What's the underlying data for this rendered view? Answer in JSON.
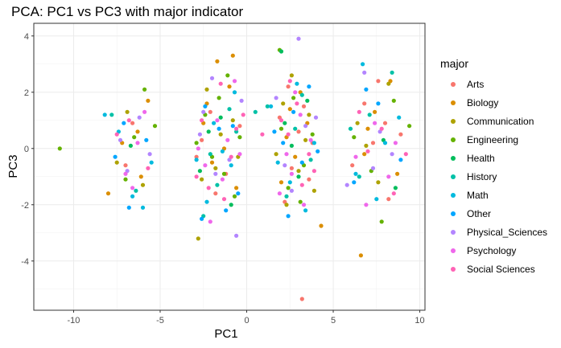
{
  "chart_data": {
    "type": "scatter",
    "title": "PCA: PC1 vs PC3 with major indicator",
    "xlabel": "PC1",
    "ylabel": "PC3",
    "xlim": [
      -12.3,
      10.3
    ],
    "ylim": [
      -5.75,
      4.45
    ],
    "xticks": [
      -10,
      -5,
      0,
      5,
      10
    ],
    "xtick_labels": [
      "-10",
      "-5",
      "0",
      "5",
      "10"
    ],
    "yticks": [
      -4,
      -2,
      0,
      2,
      4
    ],
    "ytick_labels": [
      "-4",
      "-2",
      "0",
      "2",
      "4"
    ],
    "grid": true,
    "legend": {
      "title": "major",
      "placement": "right"
    },
    "series": [
      {
        "name": "Arts",
        "color": "#F8766D",
        "points": [
          [
            -7.0,
            -0.6
          ],
          [
            -6.6,
            0.9
          ],
          [
            -2.1,
            1.3
          ],
          [
            -1.2,
            -0.9
          ],
          [
            -2.6,
            0.3
          ],
          [
            -0.4,
            0.8
          ],
          [
            -1.8,
            -1.6
          ],
          [
            -2.9,
            -0.3
          ],
          [
            1.9,
            1.1
          ],
          [
            2.6,
            -0.7
          ],
          [
            3.3,
            1.5
          ],
          [
            3.8,
            0.2
          ],
          [
            2.2,
            -1.9
          ],
          [
            3.0,
            0.6
          ],
          [
            2.4,
            2.2
          ],
          [
            3.6,
            -1.1
          ],
          [
            3.2,
            -5.35
          ],
          [
            7.3,
            0.2
          ],
          [
            8.2,
            -1.8
          ],
          [
            6.8,
            1.6
          ],
          [
            8.9,
            0.5
          ],
          [
            7.6,
            2.4
          ],
          [
            6.1,
            -0.6
          ],
          [
            8.0,
            0.9
          ]
        ]
      },
      {
        "name": "Biology",
        "color": "#DB8E00",
        "points": [
          [
            -8.0,
            -1.6
          ],
          [
            -6.3,
            0.6
          ],
          [
            -6.1,
            -1.0
          ],
          [
            -5.7,
            1.7
          ],
          [
            -7.2,
            0.2
          ],
          [
            -2.5,
            0.9
          ],
          [
            -1.0,
            2.2
          ],
          [
            -0.8,
            3.3
          ],
          [
            -1.7,
            3.1
          ],
          [
            -2.0,
            -0.5
          ],
          [
            -0.6,
            -1.4
          ],
          [
            -2.3,
            1.6
          ],
          [
            -1.3,
            0.0
          ],
          [
            2.5,
            1.4
          ],
          [
            2.8,
            -0.3
          ],
          [
            3.5,
            0.9
          ],
          [
            4.3,
            -2.75
          ],
          [
            2.0,
            -1.2
          ],
          [
            3.1,
            2.0
          ],
          [
            6.6,
            -3.8
          ],
          [
            6.8,
            -0.2
          ],
          [
            7.4,
            1.3
          ],
          [
            8.3,
            2.4
          ],
          [
            8.7,
            -0.9
          ],
          [
            7.0,
            0.7
          ],
          [
            2.3,
            0.4
          ]
        ]
      },
      {
        "name": "Communication",
        "color": "#AEA200",
        "points": [
          [
            -6.9,
            1.3
          ],
          [
            -7.5,
            -0.5
          ],
          [
            -6.0,
            -1.3
          ],
          [
            -2.8,
            -3.2
          ],
          [
            -1.8,
            -0.7
          ],
          [
            -0.8,
            1.0
          ],
          [
            -2.3,
            2.1
          ],
          [
            -1.5,
            0.5
          ],
          [
            -0.5,
            -0.3
          ],
          [
            -2.6,
            -1.1
          ],
          [
            2.1,
            1.6
          ],
          [
            3.0,
            -0.8
          ],
          [
            3.4,
            0.3
          ],
          [
            2.6,
            2.6
          ],
          [
            1.7,
            -0.2
          ],
          [
            3.9,
            -1.5
          ],
          [
            2.3,
            -2.0
          ],
          [
            3.6,
            1.2
          ],
          [
            6.4,
            0.9
          ],
          [
            7.6,
            -1.2
          ],
          [
            8.2,
            2.3
          ],
          [
            6.9,
            0.1
          ]
        ]
      },
      {
        "name": "Engineering",
        "color": "#64B200",
        "points": [
          [
            -10.8,
            0.0
          ],
          [
            -5.9,
            2.1
          ],
          [
            -6.5,
            0.4
          ],
          [
            -7.0,
            -1.1
          ],
          [
            -5.3,
            0.8
          ],
          [
            -2.4,
            1.2
          ],
          [
            -1.1,
            2.6
          ],
          [
            -2.0,
            -0.3
          ],
          [
            -0.7,
            -1.7
          ],
          [
            -1.6,
            1.8
          ],
          [
            -2.9,
            0.2
          ],
          [
            -1.3,
            -0.9
          ],
          [
            -0.4,
            0.4
          ],
          [
            2.0,
            0.7
          ],
          [
            2.7,
            1.8
          ],
          [
            3.3,
            -0.6
          ],
          [
            2.4,
            -1.4
          ],
          [
            3.8,
            0.5
          ],
          [
            1.9,
            3.5
          ],
          [
            3.1,
            -1.9
          ],
          [
            6.2,
            0.4
          ],
          [
            7.8,
            -2.6
          ],
          [
            9.4,
            0.8
          ],
          [
            8.5,
            1.7
          ],
          [
            7.2,
            -0.8
          ]
        ]
      },
      {
        "name": "Health",
        "color": "#00BD5C",
        "points": [
          [
            -6.7,
            0.1
          ],
          [
            -2.7,
            -0.8
          ],
          [
            -1.5,
            1.1
          ],
          [
            -0.9,
            -2.0
          ],
          [
            -2.2,
            0.6
          ],
          [
            2.2,
            0.9
          ],
          [
            3.0,
            -1.0
          ],
          [
            2.6,
            0.1
          ],
          [
            3.5,
            1.7
          ],
          [
            2.0,
            3.45
          ],
          [
            7.9,
            0.3
          ],
          [
            8.6,
            -1.4
          ]
        ]
      },
      {
        "name": "History",
        "color": "#00C1A7",
        "points": [
          [
            -7.8,
            1.2
          ],
          [
            -6.4,
            -1.5
          ],
          [
            -2.1,
            -0.2
          ],
          [
            -1.0,
            1.4
          ],
          [
            -2.5,
            -2.4
          ],
          [
            -0.6,
            0.6
          ],
          [
            -1.7,
            -1.3
          ],
          [
            0.5,
            1.3
          ],
          [
            1.2,
            1.5
          ],
          [
            2.8,
            0.7
          ],
          [
            3.7,
            -0.4
          ],
          [
            2.3,
            -1.7
          ],
          [
            3.2,
            1.9
          ],
          [
            6.0,
            0.7
          ],
          [
            6.5,
            -1.0
          ],
          [
            8.4,
            2.7
          ],
          [
            7.1,
            1.2
          ]
        ]
      },
      {
        "name": "Math",
        "color": "#00BADE",
        "points": [
          [
            -8.2,
            1.2
          ],
          [
            -7.4,
            0.6
          ],
          [
            -6.0,
            -2.1
          ],
          [
            -6.6,
            -1.7
          ],
          [
            -5.5,
            -0.5
          ],
          [
            -2.9,
            -0.4
          ],
          [
            -1.4,
            -0.1
          ],
          [
            -0.7,
            2.0
          ],
          [
            -2.3,
            -1.9
          ],
          [
            -1.9,
            0.9
          ],
          [
            -0.9,
            -0.6
          ],
          [
            1.4,
            1.5
          ],
          [
            2.5,
            -1.2
          ],
          [
            3.9,
            0.2
          ],
          [
            2.9,
            2.3
          ],
          [
            1.8,
            -0.5
          ],
          [
            3.4,
            -2.2
          ],
          [
            6.7,
            3.0
          ],
          [
            7.5,
            -1.8
          ],
          [
            8.8,
            1.1
          ],
          [
            6.3,
            -0.9
          ],
          [
            8.0,
            0.2
          ]
        ]
      },
      {
        "name": "Other",
        "color": "#00A6FF",
        "points": [
          [
            -7.1,
            0.9
          ],
          [
            -6.8,
            -2.1
          ],
          [
            -5.8,
            0.3
          ],
          [
            -7.6,
            -0.3
          ],
          [
            -2.6,
            -2.5
          ],
          [
            -0.5,
            -1.6
          ],
          [
            -1.6,
            0.7
          ],
          [
            -2.4,
            1.5
          ],
          [
            -1.2,
            -2.2
          ],
          [
            -0.8,
            0.8
          ],
          [
            2.1,
            0.2
          ],
          [
            3.2,
            -0.5
          ],
          [
            2.7,
            1.3
          ],
          [
            4.1,
            -0.1
          ],
          [
            2.4,
            -2.4
          ],
          [
            3.6,
            2.2
          ],
          [
            1.6,
            0.6
          ],
          [
            6.2,
            -1.2
          ],
          [
            7.6,
            1.6
          ],
          [
            8.9,
            -0.4
          ],
          [
            6.9,
            2.1
          ]
        ]
      },
      {
        "name": "Physical_Sciences",
        "color": "#B385FF",
        "points": [
          [
            -7.3,
            0.3
          ],
          [
            -6.2,
            1.1
          ],
          [
            -6.9,
            -0.8
          ],
          [
            -5.6,
            -0.2
          ],
          [
            -2.7,
            0.5
          ],
          [
            -1.0,
            -0.4
          ],
          [
            -2.0,
            2.5
          ],
          [
            -0.6,
            -3.1
          ],
          [
            -1.8,
            -0.9
          ],
          [
            -2.5,
            1.3
          ],
          [
            -0.3,
            1.7
          ],
          [
            2.2,
            -0.6
          ],
          [
            3.4,
            0.8
          ],
          [
            3.0,
            3.9
          ],
          [
            2.6,
            -1.5
          ],
          [
            4.0,
            1.1
          ],
          [
            1.7,
            1.8
          ],
          [
            5.8,
            -1.3
          ],
          [
            7.7,
            0.6
          ],
          [
            8.4,
            -0.2
          ],
          [
            6.8,
            2.7
          ],
          [
            7.3,
            -0.7
          ]
        ]
      },
      {
        "name": "Psychology",
        "color": "#EF67EB",
        "points": [
          [
            -7.0,
            -0.9
          ],
          [
            -6.3,
            0.2
          ],
          [
            -5.9,
            1.3
          ],
          [
            -6.6,
            -1.4
          ],
          [
            -2.8,
            0.0
          ],
          [
            -1.4,
            -1.1
          ],
          [
            -0.7,
            2.4
          ],
          [
            -2.1,
            -2.6
          ],
          [
            -1.7,
            1.0
          ],
          [
            -0.4,
            -0.2
          ],
          [
            -2.4,
            -0.6
          ],
          [
            -1.1,
            0.3
          ],
          [
            2.3,
            -0.2
          ],
          [
            3.1,
            1.2
          ],
          [
            2.6,
            -0.9
          ],
          [
            3.7,
            0.3
          ],
          [
            1.9,
            -1.6
          ],
          [
            2.8,
            2.0
          ],
          [
            3.3,
            -2.0
          ],
          [
            6.3,
            -0.3
          ],
          [
            7.4,
            0.9
          ],
          [
            8.2,
            -1.0
          ],
          [
            6.9,
            -2.0
          ],
          [
            8.6,
            0.2
          ]
        ]
      },
      {
        "name": "Social Sciences",
        "color": "#FF63B6",
        "points": [
          [
            -6.8,
            1.0
          ],
          [
            -5.7,
            -0.7
          ],
          [
            -7.5,
            0.5
          ],
          [
            -2.6,
            1.0
          ],
          [
            -1.3,
            -1.8
          ],
          [
            -0.6,
            0.7
          ],
          [
            -2.2,
            -1.4
          ],
          [
            -1.5,
            2.3
          ],
          [
            -0.9,
            -0.3
          ],
          [
            -2.9,
            -1.0
          ],
          [
            -0.2,
            1.2
          ],
          [
            2.4,
            0.5
          ],
          [
            3.2,
            -1.3
          ],
          [
            2.9,
            1.6
          ],
          [
            3.6,
            -0.2
          ],
          [
            2.0,
            1.0
          ],
          [
            3.9,
            -0.8
          ],
          [
            2.5,
            2.4
          ],
          [
            0.9,
            0.5
          ],
          [
            7.0,
            -0.1
          ],
          [
            8.5,
            -1.6
          ],
          [
            6.5,
            1.3
          ],
          [
            9.2,
            -0.2
          ],
          [
            7.8,
            0.7
          ]
        ]
      }
    ]
  }
}
